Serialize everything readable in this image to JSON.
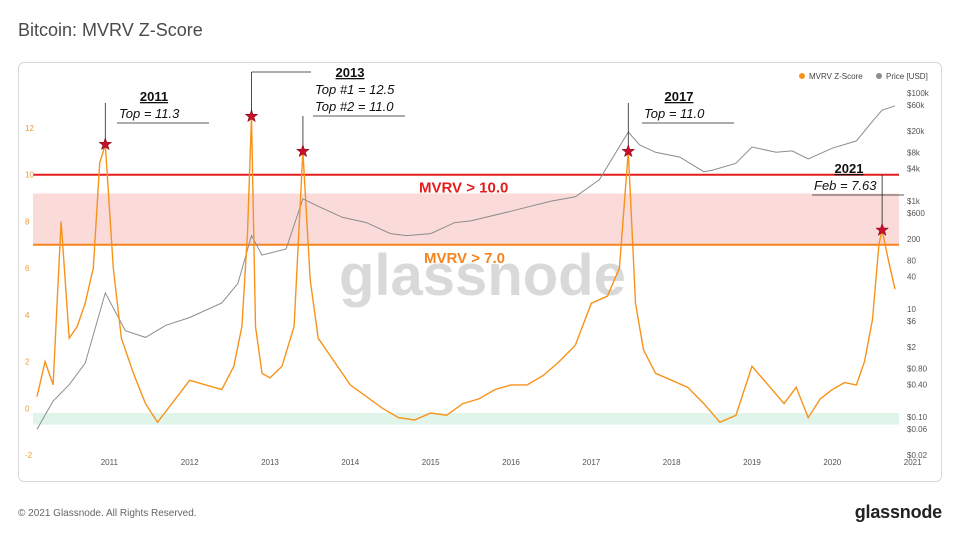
{
  "header": {
    "title": "Bitcoin: MVRV Z-Score"
  },
  "footer": {
    "copyright": "© 2021 Glassnode. All Rights Reserved.",
    "brand": "glassnode"
  },
  "watermark": "glassnode",
  "colors": {
    "mvrv": "#f7931a",
    "price": "#8c8c8c",
    "red_line": "#e31d1d",
    "orange_line": "#f5841f",
    "red_band": "#fbdada",
    "green_band": "#e1f4ea",
    "star": "#c8102e"
  },
  "chart_data": {
    "type": "line",
    "title": "Bitcoin: MVRV Z-Score",
    "legend": {
      "placement": "top-right",
      "items": [
        "MVRV Z-Score",
        "Price [USD]"
      ]
    },
    "x_ticks": [
      "2011",
      "2012",
      "2013",
      "2014",
      "2015",
      "2016",
      "2017",
      "2018",
      "2019",
      "2020",
      "2021"
    ],
    "left_axis": {
      "ylim": [
        -2,
        13.5
      ],
      "ticks": [
        "-2",
        "0",
        "2",
        "4",
        "6",
        "8",
        "10",
        "12"
      ]
    },
    "right_axis": {
      "scale": "log",
      "ylim": [
        0.02,
        100000
      ],
      "ticks": [
        "$100k",
        "$60k",
        "$20k",
        "$8k",
        "$4k",
        "$1k",
        "$600",
        "200",
        "80",
        "40",
        "10",
        "$6",
        "$2",
        "$0.80",
        "$0.40",
        "$0.10",
        "$0.06",
        "$0.02"
      ]
    },
    "bands": [
      {
        "label": "MVRV > 10.0",
        "from": 9.2,
        "to": 10.0,
        "color": "red"
      },
      {
        "label": "MVRV > 7.0",
        "from": 7.0,
        "to": 9.2,
        "color": "pink"
      },
      {
        "label": "",
        "from": -0.7,
        "to": -0.2,
        "color": "green"
      }
    ],
    "annotations": [
      {
        "year": "2011",
        "lines": [
          "Top = 11.3"
        ],
        "x": 2011.45,
        "y": 11.3
      },
      {
        "year": "2013",
        "lines": [
          "Top #1 = 12.5",
          "Top #2 = 11.0"
        ],
        "x": 2013.27,
        "y": 12.5,
        "x2": 2013.91,
        "y2": 11.0
      },
      {
        "year": "2017",
        "lines": [
          "Top = 11.0"
        ],
        "x": 2017.96,
        "y": 11.0
      },
      {
        "year": "2021",
        "lines": [
          "Feb = 7.63"
        ],
        "x": 2021.12,
        "y": 7.63
      }
    ],
    "series": [
      {
        "name": "MVRV Z-Score",
        "x": [
          2010.6,
          2010.7,
          2010.8,
          2010.9,
          2011.0,
          2011.1,
          2011.2,
          2011.3,
          2011.38,
          2011.45,
          2011.55,
          2011.65,
          2011.8,
          2011.95,
          2012.1,
          2012.3,
          2012.5,
          2012.7,
          2012.9,
          2013.05,
          2013.15,
          2013.22,
          2013.27,
          2013.32,
          2013.4,
          2013.5,
          2013.65,
          2013.8,
          2013.91,
          2014.0,
          2014.1,
          2014.3,
          2014.5,
          2014.7,
          2014.9,
          2015.1,
          2015.3,
          2015.5,
          2015.7,
          2015.9,
          2016.1,
          2016.3,
          2016.5,
          2016.7,
          2016.9,
          2017.1,
          2017.3,
          2017.5,
          2017.7,
          2017.85,
          2017.96,
          2018.05,
          2018.15,
          2018.3,
          2018.5,
          2018.7,
          2018.9,
          2019.1,
          2019.3,
          2019.5,
          2019.7,
          2019.9,
          2020.05,
          2020.2,
          2020.35,
          2020.5,
          2020.65,
          2020.8,
          2020.9,
          2021.0,
          2021.08,
          2021.12,
          2021.2,
          2021.28
        ],
        "values": [
          0.5,
          2.0,
          1.0,
          8.0,
          3.0,
          3.5,
          4.5,
          6.0,
          10.5,
          11.3,
          6.0,
          3.0,
          1.5,
          0.2,
          -0.6,
          0.3,
          1.2,
          1.0,
          0.8,
          1.8,
          3.5,
          7.5,
          12.5,
          3.5,
          1.5,
          1.3,
          1.8,
          3.5,
          11.0,
          5.5,
          3.0,
          2.0,
          1.0,
          0.5,
          0.0,
          -0.4,
          -0.5,
          -0.2,
          -0.3,
          0.2,
          0.4,
          0.8,
          1.0,
          1.0,
          1.4,
          2.0,
          2.7,
          4.5,
          4.8,
          6.0,
          11.0,
          4.5,
          2.5,
          1.5,
          1.2,
          0.9,
          0.2,
          -0.6,
          -0.3,
          1.8,
          1.0,
          0.2,
          0.9,
          -0.4,
          0.4,
          0.8,
          1.1,
          1.0,
          2.0,
          3.8,
          7.0,
          7.63,
          6.3,
          5.1
        ]
      },
      {
        "name": "Price [USD]",
        "x": [
          2010.6,
          2010.8,
          2011.0,
          2011.2,
          2011.45,
          2011.7,
          2011.95,
          2012.2,
          2012.5,
          2012.9,
          2013.1,
          2013.27,
          2013.4,
          2013.7,
          2013.91,
          2014.1,
          2014.4,
          2014.7,
          2015.0,
          2015.2,
          2015.5,
          2015.8,
          2016.0,
          2016.5,
          2017.0,
          2017.3,
          2017.6,
          2017.96,
          2018.1,
          2018.3,
          2018.6,
          2018.9,
          2019.0,
          2019.3,
          2019.5,
          2019.8,
          2020.0,
          2020.2,
          2020.5,
          2020.8,
          2021.0,
          2021.12,
          2021.28
        ],
        "values": [
          0.06,
          0.2,
          0.4,
          1,
          20,
          4,
          3,
          5,
          7,
          13,
          30,
          230,
          100,
          130,
          1100,
          800,
          500,
          400,
          250,
          230,
          250,
          400,
          430,
          650,
          1000,
          1200,
          2500,
          19000,
          11000,
          8000,
          6500,
          3500,
          3700,
          5000,
          10000,
          8000,
          8500,
          6000,
          9500,
          13000,
          30000,
          48000,
          58000
        ]
      }
    ]
  }
}
